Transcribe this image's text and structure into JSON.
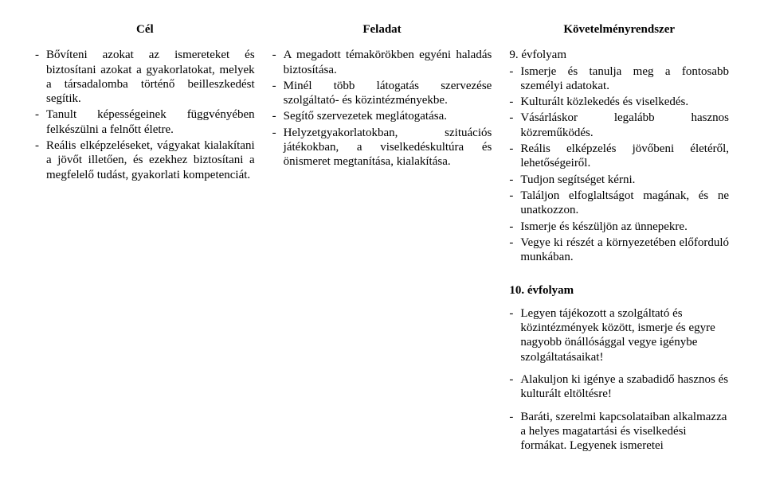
{
  "headers": {
    "col1": "Cél",
    "col2": "Feladat",
    "col3": "Követelményrendszer"
  },
  "col1_items": [
    "Bővíteni azokat az ismereteket és biztosítani azokat a gyakorlatokat, melyek a társadalomba történő beilleszkedést segítik.",
    "Tanult képességeinek függvényében felkészülni a felnőtt életre.",
    "Reális elképzeléseket, vágyakat kialakítani a jövőt illetően, és ezekhez biztosítani a megfelelő tudást, gyakorlati kompetenciát."
  ],
  "col2_items": [
    "A megadott témakörökben egyéni haladás biztosítása.",
    "Minél több látogatás szervezése szolgáltató- és közintézményekbe.",
    "Segítő szervezetek meglátogatása.",
    "Helyzetgyakorlatokban, szituációs játékokban, a viselkedéskultúra és önismeret megtanítása, kialakítása."
  ],
  "grade9_label": "9. évfolyam",
  "grade9_items": [
    "Ismerje és tanulja meg a fontosabb személyi adatokat.",
    "Kulturált közlekedés és viselkedés.",
    "Vásárláskor legalább hasznos közreműködés.",
    "Reális elképzelés jövőbeni életéről, lehetőségeiről.",
    "Tudjon segítséget kérni.",
    "Találjon elfoglaltságot magának, és ne unatkozzon.",
    "Ismerje és készüljön az ünnepekre.",
    "Vegye ki részét a környezetében előforduló munkában."
  ],
  "grade10_label": "10. évfolyam",
  "grade10_paras": [
    "Legyen tájékozott a szolgáltató és közintézmények között, ismerje és egyre nagyobb önállósággal vegye igénybe szolgáltatásaikat!",
    "Alakuljon ki igénye a szabadidő hasznos és kulturált eltöltésre!",
    "Baráti, szerelmi kapcsolataiban alkalmazza a helyes magatartási és viselkedési formákat. Legyenek ismeretei"
  ]
}
